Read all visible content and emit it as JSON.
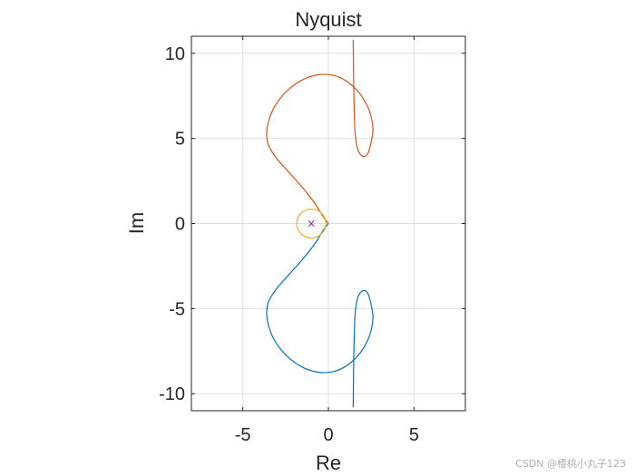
{
  "chart_data": {
    "type": "line",
    "title": "Nyquist",
    "xlabel": "Re",
    "ylabel": "Im",
    "xlim": [
      -8,
      8
    ],
    "ylim": [
      -11,
      11
    ],
    "grid": true,
    "xticks": [
      -5,
      0,
      5
    ],
    "yticks": [
      -10,
      -5,
      0,
      5,
      10
    ],
    "xtick_labels": [
      "-5",
      "0",
      "5"
    ],
    "ytick_labels": [
      "-10",
      "-5",
      "0",
      "5",
      "10"
    ],
    "series": [
      {
        "color": "#0072BD",
        "x": [
          0.0,
          -0.3,
          -0.8,
          -1.5,
          -2.3,
          -3.0,
          -3.5,
          -3.6,
          -3.4,
          -3.0,
          -2.3,
          -1.4,
          -0.5,
          0.3,
          1.0,
          1.6,
          2.0,
          2.4,
          2.6,
          2.5,
          2.3,
          2.0,
          1.7,
          1.55,
          1.48,
          1.45
        ],
        "y": [
          0.0,
          -0.4,
          -1.2,
          -2.1,
          -3.0,
          -3.8,
          -4.6,
          -5.4,
          -6.3,
          -7.1,
          -7.9,
          -8.5,
          -8.75,
          -8.7,
          -8.4,
          -7.9,
          -7.4,
          -6.6,
          -5.6,
          -4.8,
          -4.1,
          -3.95,
          -4.4,
          -5.5,
          -8.0,
          -10.8
        ]
      },
      {
        "color": "#D95319",
        "x": [
          0.0,
          -0.3,
          -0.8,
          -1.5,
          -2.3,
          -3.0,
          -3.5,
          -3.6,
          -3.4,
          -3.0,
          -2.3,
          -1.4,
          -0.5,
          0.3,
          1.0,
          1.6,
          2.0,
          2.4,
          2.6,
          2.5,
          2.3,
          2.0,
          1.7,
          1.55,
          1.48,
          1.45
        ],
        "y": [
          0.0,
          0.4,
          1.2,
          2.1,
          3.0,
          3.8,
          4.6,
          5.4,
          6.3,
          7.1,
          7.9,
          8.5,
          8.75,
          8.7,
          8.4,
          7.9,
          7.4,
          6.6,
          5.6,
          4.8,
          4.1,
          3.95,
          4.4,
          5.5,
          8.0,
          10.8
        ]
      },
      {
        "color": "#EDB120",
        "shape": "circle",
        "center": [
          -1,
          0
        ],
        "radius": 0.85
      }
    ],
    "markers": [
      {
        "x": -1,
        "y": 0,
        "symbol": "×",
        "color": "#7E2F8E"
      }
    ]
  },
  "watermark": "CSDN @樱桃小丸子123"
}
